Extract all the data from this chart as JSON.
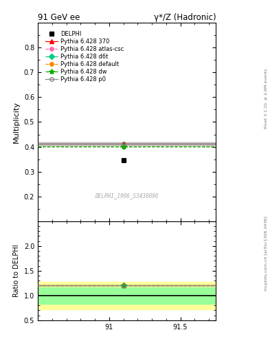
{
  "title_left": "91 GeV ee",
  "title_right": "γ*/Z (Hadronic)",
  "ylabel_main": "Multiplicity",
  "ylabel_ratio": "Ratio to DELPHI",
  "watermark": "DELPHI_1996_S3430090",
  "right_label_top": "Rivet 3.1.10, ≥ 2.6M events",
  "right_label_bottom": "mcplots.cern.ch [arXiv:1306.3436]",
  "xlim": [
    90.5,
    91.75
  ],
  "xticks": [
    91.0,
    91.5
  ],
  "ylim_main": [
    0.1,
    0.9
  ],
  "yticks_main": [
    0.2,
    0.3,
    0.4,
    0.5,
    0.6,
    0.7,
    0.8
  ],
  "ylim_ratio": [
    0.5,
    2.5
  ],
  "yticks_ratio": [
    0.5,
    1.0,
    1.5,
    2.0
  ],
  "data_x": 91.1,
  "data_y": 0.346,
  "line_y_370": 0.413,
  "line_y_atlascsc": 0.402,
  "line_y_d6t": 0.402,
  "line_y_default": 0.402,
  "line_y_dw": 0.402,
  "line_y_p0": 0.413,
  "ratio_data_x": 91.1,
  "ratio_data_y": 1.21,
  "ratio_line_y": 1.21,
  "main_band_gray_half": 0.006,
  "ratio_band_yellow_abs": 0.28,
  "ratio_band_green_abs": 0.17,
  "colors": [
    "#ff0000",
    "#ff69b4",
    "#00cc88",
    "#ff8800",
    "#00aa00",
    "#888888"
  ],
  "lstyles": [
    "-",
    "--",
    "--",
    "--",
    "--",
    "-"
  ],
  "markers": [
    "^",
    "o",
    "D",
    "o",
    "*",
    "o"
  ],
  "series_labels": [
    "Pythia 6.428 370",
    "Pythia 6.428 atlas-csc",
    "Pythia 6.428 d6t",
    "Pythia 6.428 default",
    "Pythia 6.428 dw",
    "Pythia 6.428 p0"
  ],
  "bg_color": "#ffffff"
}
